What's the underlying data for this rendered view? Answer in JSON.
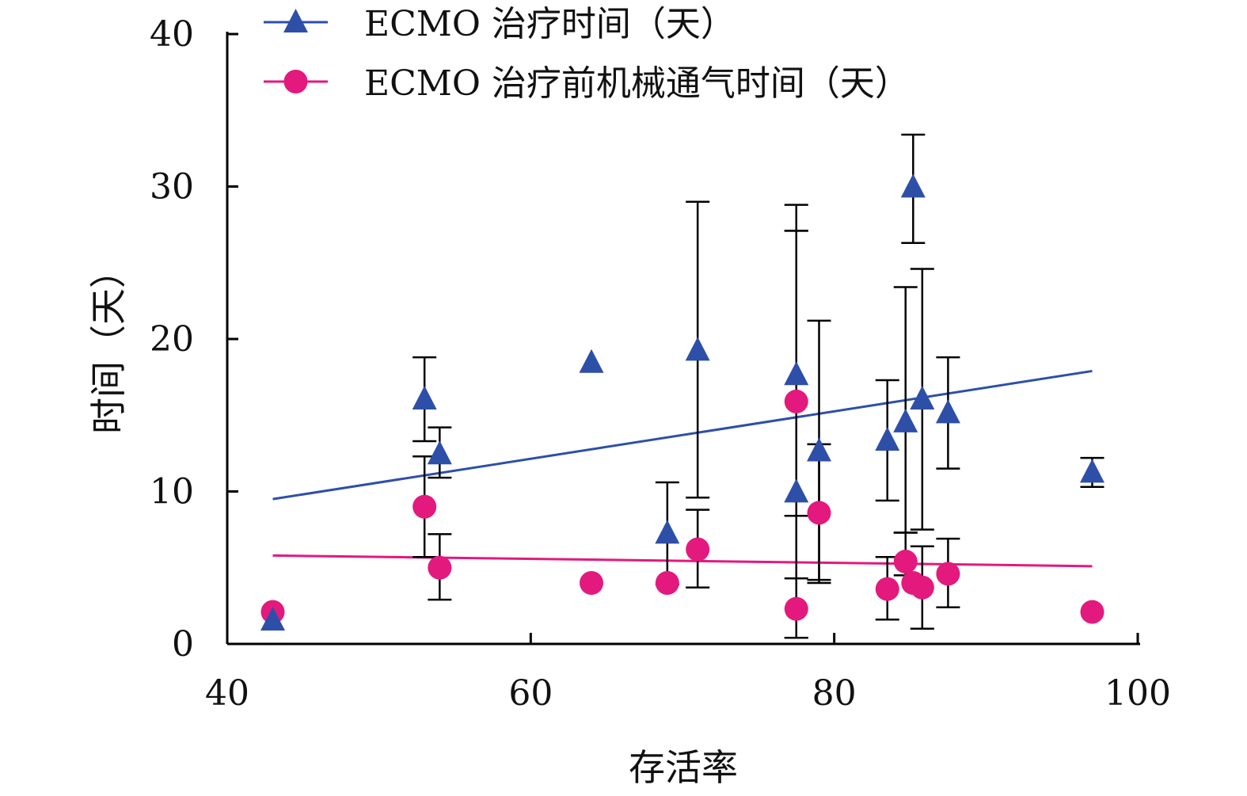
{
  "chart_data": {
    "type": "scatter",
    "xlabel": "存活率",
    "ylabel": "时间（天）",
    "xlim": [
      40,
      100
    ],
    "ylim": [
      0,
      40
    ],
    "x_ticks": [
      40,
      60,
      80,
      100
    ],
    "y_ticks": [
      0,
      10,
      20,
      30,
      40
    ],
    "grid": false,
    "legend_position": "top-left",
    "series": [
      {
        "name": "ECMO 治疗时间（天）",
        "marker": "triangle",
        "color": "#2e4fa8",
        "points": [
          {
            "x": 43,
            "y": 1.5
          },
          {
            "x": 53,
            "y": 16.0,
            "err_low": 13.3,
            "err_high": 18.8
          },
          {
            "x": 54,
            "y": 12.4,
            "err_low": 10.9,
            "err_high": 14.2
          },
          {
            "x": 64,
            "y": 18.4
          },
          {
            "x": 69,
            "y": 7.2,
            "err_low": 3.9,
            "err_high": 10.6
          },
          {
            "x": 71,
            "y": 19.2,
            "err_low": 9.6,
            "err_high": 29.0
          },
          {
            "x": 77.5,
            "y": 17.6,
            "err_low": 8.4,
            "err_high": 27.1
          },
          {
            "x": 77.5,
            "y": 9.9,
            "err_low": 0.4,
            "err_high": 28.8
          },
          {
            "x": 79,
            "y": 12.6,
            "err_low": 4.2,
            "err_high": 21.2
          },
          {
            "x": 83.5,
            "y": 13.3,
            "err_low": 9.4,
            "err_high": 17.3
          },
          {
            "x": 84.7,
            "y": 14.5,
            "err_low": 7.3,
            "err_high": 23.4
          },
          {
            "x": 85.2,
            "y": 29.9,
            "err_low": 26.3,
            "err_high": 33.4
          },
          {
            "x": 85.8,
            "y": 16.0,
            "err_low": 7.5,
            "err_high": 24.6
          },
          {
            "x": 87.5,
            "y": 15.1,
            "err_low": 11.5,
            "err_high": 18.8
          },
          {
            "x": 97,
            "y": 11.2,
            "err_low": 10.3,
            "err_high": 12.2
          }
        ],
        "trendline": {
          "x": [
            43,
            97
          ],
          "y": [
            9.5,
            17.9
          ]
        }
      },
      {
        "name": "ECMO 治疗前机械通气时间（天）",
        "marker": "circle",
        "color": "#e3197e",
        "points": [
          {
            "x": 43,
            "y": 2.1
          },
          {
            "x": 53,
            "y": 9.0,
            "err_low": 5.7,
            "err_high": 12.3
          },
          {
            "x": 54,
            "y": 5.0,
            "err_low": 2.9,
            "err_high": 7.2
          },
          {
            "x": 64,
            "y": 4.0
          },
          {
            "x": 69,
            "y": 4.0
          },
          {
            "x": 71,
            "y": 6.2,
            "err_low": 3.7,
            "err_high": 8.8
          },
          {
            "x": 77.5,
            "y": 15.9,
            "err_low": 4.3,
            "err_high": 27.1
          },
          {
            "x": 77.5,
            "y": 2.3,
            "err_low": 0.4,
            "err_high": 8.4
          },
          {
            "x": 79,
            "y": 8.6,
            "err_low": 4.0,
            "err_high": 13.1
          },
          {
            "x": 83.5,
            "y": 3.6,
            "err_low": 1.6,
            "err_high": 5.7
          },
          {
            "x": 84.7,
            "y": 5.4,
            "err_low": 4.5,
            "err_high": 7.3
          },
          {
            "x": 85.2,
            "y": 4.0
          },
          {
            "x": 85.8,
            "y": 3.7,
            "err_low": 1.0,
            "err_high": 6.4
          },
          {
            "x": 87.5,
            "y": 4.6,
            "err_low": 2.4,
            "err_high": 6.9
          },
          {
            "x": 97,
            "y": 2.1
          }
        ],
        "trendline": {
          "x": [
            43,
            97
          ],
          "y": [
            5.8,
            5.1
          ]
        }
      }
    ]
  }
}
